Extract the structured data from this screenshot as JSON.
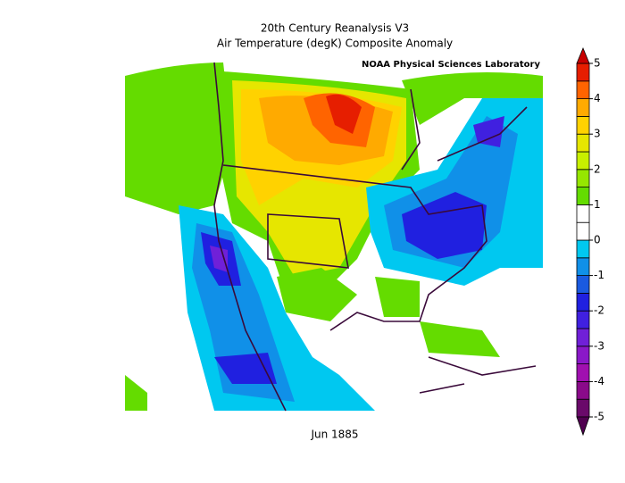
{
  "title": "20th Century Reanalysis V3",
  "subtitle": "Air Temperature (degK) Composite Anomaly",
  "credit": "NOAA Physical Sciences Laboratory",
  "date_label": "Jun 1885",
  "colorbar": {
    "lim": [
      -5,
      5
    ],
    "ticks": [
      5,
      4,
      3,
      2,
      1,
      0,
      -1,
      -2,
      -3,
      -4,
      -5
    ],
    "colors": [
      "#6a0a6a",
      "#8a0a8a",
      "#a010b0",
      "#8a18c8",
      "#7020d8",
      "#4020e0",
      "#2020e0",
      "#1a5ae0",
      "#1090e8",
      "#00c8f0",
      "#ffffff",
      "#ffffff",
      "#64dc00",
      "#96e600",
      "#c8f000",
      "#e6e600",
      "#ffd200",
      "#ffaa00",
      "#ff6400",
      "#e61e00"
    ],
    "over_color": "#c80000",
    "under_color": "#500050"
  }
}
